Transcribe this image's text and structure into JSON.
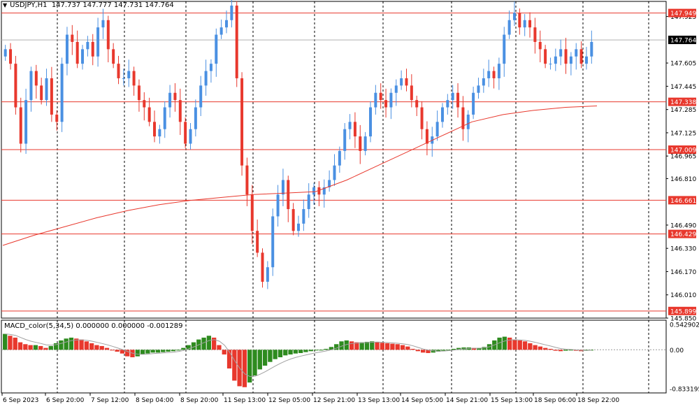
{
  "header": {
    "symbol": "USDJPY,H1",
    "ohlc_text": "147.737 147.777 147.731 147.764"
  },
  "macd_header": {
    "label": "MACD_color(5,34,5)",
    "values_text": "0.000000 0.000000 -0.001289"
  },
  "colors": {
    "bull": "#4a90e2",
    "bear": "#e8382d",
    "ma": "#e8382d",
    "level": "#e8382d",
    "grid": "#000000",
    "hist_pos": "#e8382d",
    "hist_neg": "#2e8b1f",
    "signal": "#a0a0a0"
  },
  "chart_data": [
    {
      "type": "candlestick",
      "symbol": "USDJPY",
      "timeframe": "H1",
      "x_tick_labels": [
        "6 Sep 2023",
        "6 Sep 20:00",
        "7 Sep 12:00",
        "8 Sep 04:00",
        "8 Sep 20:00",
        "11 Sep 13:00",
        "12 Sep 05:00",
        "12 Sep 21:00",
        "13 Sep 13:00",
        "14 Sep 05:00",
        "14 Sep 21:00",
        "15 Sep 13:00",
        "18 Sep 06:00",
        "18 Sep 22:00"
      ],
      "y_tick_labels": [
        "147.925",
        "147.605",
        "147.445",
        "147.285",
        "147.125",
        "146.965",
        "146.810",
        "146.490",
        "146.330",
        "146.170",
        "146.010",
        "145.850"
      ],
      "ylim": [
        145.85,
        148.0
      ],
      "current_price": 147.764,
      "price_levels": [
        147.949,
        147.338,
        147.009,
        146.661,
        146.429,
        145.899
      ],
      "close_series": [
        147.7,
        147.6,
        147.3,
        147.05,
        147.35,
        147.55,
        147.45,
        147.35,
        147.5,
        147.25,
        147.2,
        147.6,
        147.8,
        147.75,
        147.6,
        147.7,
        147.75,
        147.65,
        147.85,
        147.9,
        147.7,
        147.6,
        147.5,
        147.5,
        147.55,
        147.45,
        147.35,
        147.3,
        147.2,
        147.1,
        147.15,
        147.3,
        147.4,
        147.35,
        147.2,
        147.05,
        147.15,
        147.3,
        147.45,
        147.55,
        147.6,
        147.8,
        147.85,
        147.9,
        148.0,
        147.5,
        146.9,
        146.7,
        146.45,
        146.3,
        146.1,
        146.2,
        146.55,
        146.7,
        146.8,
        146.6,
        146.45,
        146.5,
        146.6,
        146.7,
        146.75,
        146.7,
        146.75,
        146.8,
        146.9,
        147.0,
        147.15,
        147.2,
        147.1,
        147.0,
        147.1,
        147.3,
        147.4,
        147.35,
        147.3,
        147.4,
        147.45,
        147.5,
        147.45,
        147.35,
        147.3,
        147.15,
        147.05,
        147.1,
        147.2,
        147.3,
        147.35,
        147.4,
        147.3,
        147.15,
        147.25,
        147.4,
        147.45,
        147.5,
        147.55,
        147.5,
        147.6,
        147.8,
        147.9,
        147.95,
        147.85,
        147.9,
        147.85,
        147.75,
        147.7,
        147.6,
        147.6,
        147.65,
        147.7,
        147.6,
        147.65,
        147.7,
        147.6,
        147.65,
        147.75
      ],
      "ma_series": [
        146.35,
        146.42,
        146.48,
        146.54,
        146.59,
        146.63,
        146.66,
        146.68,
        146.7,
        146.71,
        146.72,
        146.8,
        146.9,
        147.0,
        147.1,
        147.2,
        147.25,
        147.28,
        147.3,
        147.31
      ],
      "yaxis_side": "right",
      "grid": "vertical-dashed"
    },
    {
      "type": "bar",
      "name": "MACD_color(5,34,5)",
      "y_tick_labels": [
        "0.542902",
        "0.00",
        "-0.833195"
      ],
      "ylim": [
        -0.833195,
        0.542902
      ],
      "values": [
        0.34,
        0.3,
        0.26,
        0.16,
        0.12,
        0.1,
        0.1,
        0.08,
        0.04,
        0.08,
        0.14,
        0.2,
        0.24,
        0.26,
        0.24,
        0.22,
        0.18,
        0.14,
        0.1,
        0.08,
        0.04,
        0.0,
        -0.04,
        -0.08,
        -0.14,
        -0.16,
        -0.14,
        -0.1,
        -0.08,
        -0.06,
        -0.06,
        -0.05,
        -0.04,
        -0.03,
        0.0,
        0.04,
        0.1,
        0.16,
        0.22,
        0.26,
        0.3,
        0.26,
        0.1,
        -0.1,
        -0.4,
        -0.66,
        -0.78,
        -0.8,
        -0.7,
        -0.55,
        -0.42,
        -0.34,
        -0.26,
        -0.2,
        -0.16,
        -0.12,
        -0.1,
        -0.08,
        -0.07,
        -0.05,
        -0.03,
        -0.01,
        0.0,
        0.02,
        0.06,
        0.12,
        0.18,
        0.2,
        0.18,
        0.16,
        0.16,
        0.17,
        0.18,
        0.17,
        0.15,
        0.14,
        0.13,
        0.12,
        0.1,
        0.07,
        0.02,
        -0.03,
        -0.06,
        -0.07,
        -0.06,
        -0.04,
        -0.02,
        0.0,
        0.02,
        0.04,
        0.05,
        0.05,
        0.04,
        0.04,
        0.06,
        0.12,
        0.2,
        0.26,
        0.28,
        0.26,
        0.22,
        0.2,
        0.18,
        0.14,
        0.1,
        0.07,
        0.04,
        0.02,
        -0.02,
        -0.03,
        -0.02,
        -0.01,
        -0.02,
        -0.03,
        -0.02,
        0.0
      ]
    }
  ]
}
